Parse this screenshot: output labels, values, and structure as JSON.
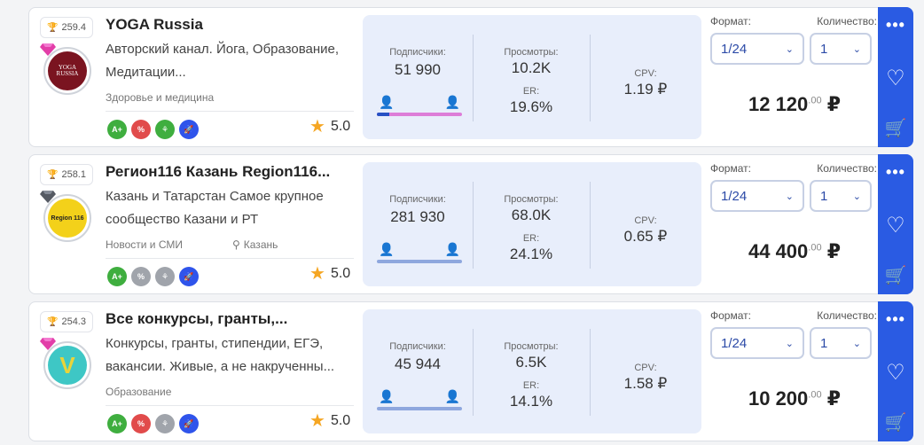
{
  "listing": {
    "labels": {
      "subscribers": "Подписчики:",
      "views": "Просмотры:",
      "er": "ER:",
      "cpv": "CPV:",
      "format": "Формат:",
      "quantity": "Количество:"
    },
    "channels": [
      {
        "rating_score": "259.4",
        "title": "YOGA Russia",
        "description": "Авторский канал. Йога, Образование, Медитации...",
        "category": "Здоровье и медицина",
        "city": "",
        "avatar_text": "YOGA RUSSIA",
        "subscribers": "51 990",
        "views": "10.2K",
        "er": "19.6%",
        "cpv": "1.19 ₽",
        "male_share": 0.15,
        "format": "1/24",
        "quantity": "1",
        "price": "12 120",
        "price_cents": ".00",
        "currency": "₽",
        "stars": "5.0",
        "gem_color": "#e23ea8"
      },
      {
        "rating_score": "258.1",
        "title": "Регион116 Казань Region116...",
        "description": "Казань и Татарстан Самое крупное сообщество Казани и РТ",
        "category": "Новости и СМИ",
        "city": "Казань",
        "avatar_text": "Region 116",
        "subscribers": "281 930",
        "views": "68.0K",
        "er": "24.1%",
        "cpv": "0.65 ₽",
        "male_share": null,
        "format": "1/24",
        "quantity": "1",
        "price": "44 400",
        "price_cents": ".00",
        "currency": "₽",
        "stars": "5.0",
        "gem_color": "#555a63"
      },
      {
        "rating_score": "254.3",
        "title": "Все конкурсы, гранты,...",
        "description": "Конкурсы, гранты, стипендии, ЕГЭ, вакансии. Живые, а не накрученны...",
        "category": "Образование",
        "city": "",
        "avatar_text": "V",
        "subscribers": "45 944",
        "views": "6.5K",
        "er": "14.1%",
        "cpv": "1.58 ₽",
        "male_share": null,
        "format": "1/24",
        "quantity": "1",
        "price": "10 200",
        "price_cents": ".00",
        "currency": "₽",
        "stars": "5.0",
        "gem_color": "#e23ea8"
      }
    ],
    "badges": [
      "A+",
      "%",
      "⚘",
      "🚀"
    ],
    "colors": {
      "accent": "#2a5be3",
      "stats_bg": "#e8eefb",
      "badge_green": "#3fae3f",
      "badge_red": "#e14b4b",
      "badge_gray": "#a0a4ab",
      "badge_blue": "#2f54eb"
    },
    "icons": [
      "trophy-icon",
      "gem-icon",
      "location-pin-icon",
      "star-icon",
      "male-icon",
      "female-icon",
      "chevron-down-icon",
      "more-icon",
      "heart-icon",
      "add-to-cart-icon"
    ]
  }
}
